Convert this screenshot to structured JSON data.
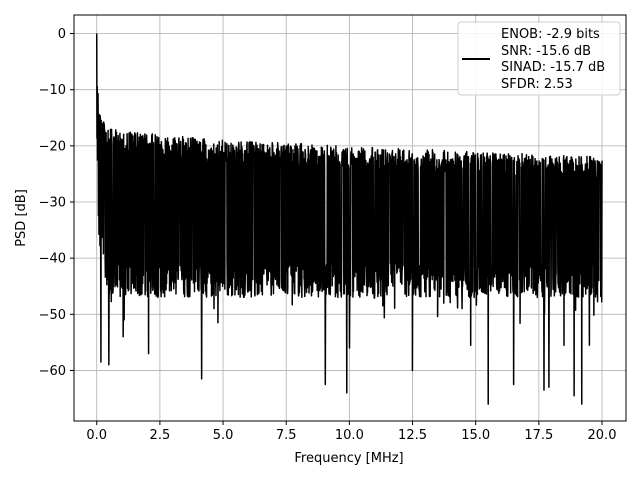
{
  "chart_data": {
    "type": "line",
    "xlabel": "Frequency [MHz]",
    "ylabel": "PSD [dB]",
    "xlim": [
      -0.9,
      20.95
    ],
    "ylim": [
      -69.0,
      3.3
    ],
    "xticks": [
      0.0,
      2.5,
      5.0,
      7.5,
      10.0,
      12.5,
      15.0,
      17.5,
      20.0
    ],
    "xtick_labels": [
      "0.0",
      "2.5",
      "5.0",
      "7.5",
      "10.0",
      "12.5",
      "15.0",
      "17.5",
      "20.0"
    ],
    "yticks": [
      0,
      -10,
      -20,
      -30,
      -40,
      -50,
      -60
    ],
    "ytick_labels": [
      "0",
      "−10",
      "−20",
      "−30",
      "−40",
      "−50",
      "−60"
    ],
    "grid": true,
    "legend_position": "top-right",
    "legend_lines": [
      "ENOB: -2.9 bits",
      "SNR: -15.6 dB",
      "SINAD: -15.7 dB",
      "SFDR: 2.53"
    ],
    "line_color": "#000000",
    "series": [
      {
        "x_start": 0.0,
        "x_end": 20.0,
        "points": 2048,
        "peak": {
          "x": 0.0,
          "y": 0.0
        },
        "envelope": [
          {
            "x": 0.0,
            "upper": -12,
            "lower": -36
          },
          {
            "x": 0.5,
            "upper": -17,
            "lower": -47
          },
          {
            "x": 2.5,
            "upper": -18,
            "lower": -47
          },
          {
            "x": 5.0,
            "upper": -19,
            "lower": -47
          },
          {
            "x": 10.0,
            "upper": -20,
            "lower": -47
          },
          {
            "x": 15.0,
            "upper": -21,
            "lower": -47
          },
          {
            "x": 20.0,
            "upper": -22,
            "lower": -47
          }
        ],
        "deep_nulls": [
          {
            "x": 0.17,
            "y": -58.5
          },
          {
            "x": 0.48,
            "y": -59.0
          },
          {
            "x": 1.05,
            "y": -54.0
          },
          {
            "x": 1.08,
            "y": -51.0
          },
          {
            "x": 2.05,
            "y": -57.0
          },
          {
            "x": 4.15,
            "y": -61.5
          },
          {
            "x": 4.8,
            "y": -51.5
          },
          {
            "x": 9.05,
            "y": -62.5
          },
          {
            "x": 9.9,
            "y": -64.0
          },
          {
            "x": 10.0,
            "y": -56.0
          },
          {
            "x": 12.5,
            "y": -60.0
          },
          {
            "x": 14.8,
            "y": -55.5
          },
          {
            "x": 15.5,
            "y": -66.0
          },
          {
            "x": 16.5,
            "y": -62.5
          },
          {
            "x": 17.7,
            "y": -63.5
          },
          {
            "x": 17.9,
            "y": -63.0
          },
          {
            "x": 18.5,
            "y": -55.5
          },
          {
            "x": 18.9,
            "y": -64.5
          },
          {
            "x": 19.2,
            "y": -66.0
          },
          {
            "x": 19.5,
            "y": -55.5
          }
        ]
      }
    ]
  }
}
